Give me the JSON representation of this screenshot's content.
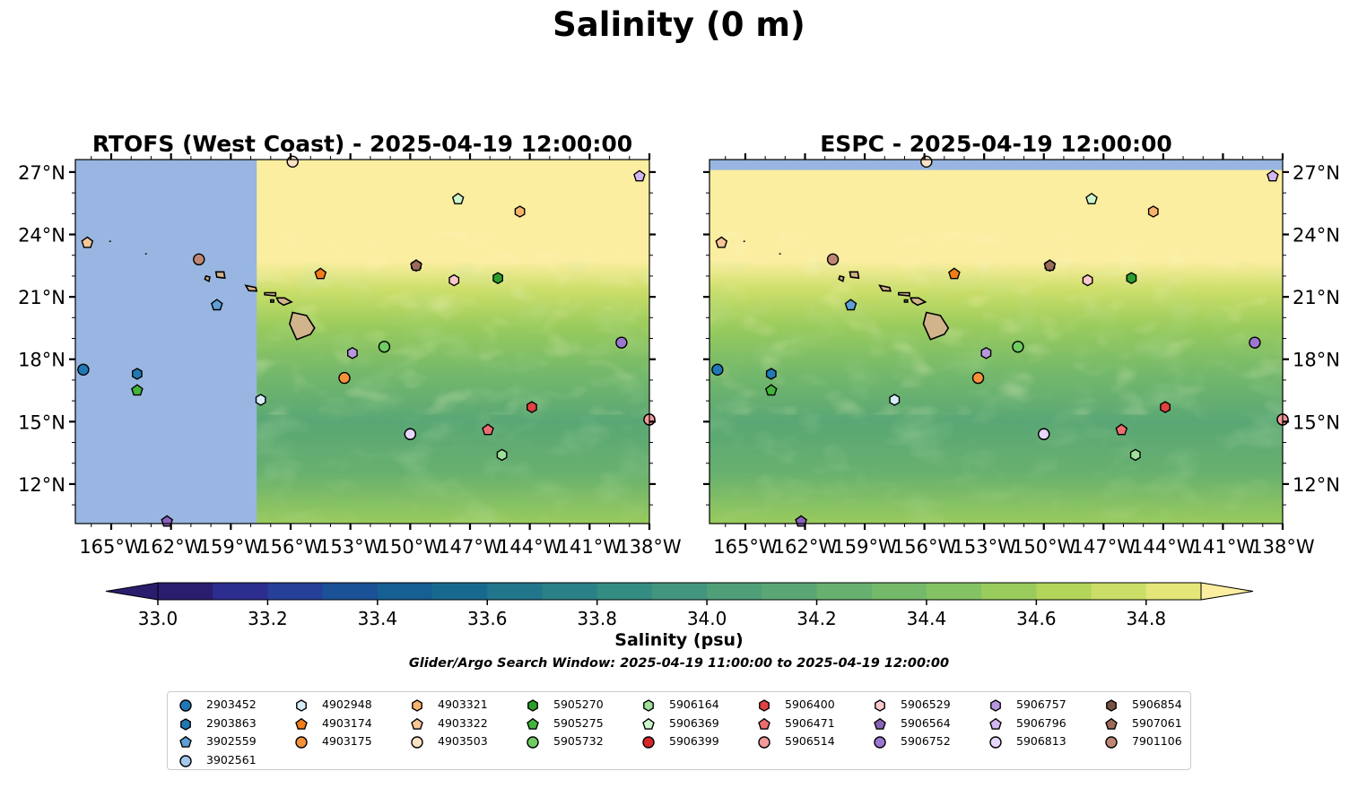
{
  "suptitle": "Salinity (0 m)",
  "panels": [
    {
      "title": "RTOFS (West Coast) - 2025-04-19 12:00:00",
      "ytick_side": "left"
    },
    {
      "title": "ESPC - 2025-04-19 12:00:00",
      "ytick_side": "right"
    }
  ],
  "colorbar": {
    "label": "Salinity (psu)",
    "ticks": [
      "33.0",
      "33.2",
      "33.4",
      "33.6",
      "33.8",
      "34.0",
      "34.2",
      "34.4",
      "34.6",
      "34.8"
    ],
    "levels_min": 33.0,
    "levels_max": 34.9,
    "level_step": 0.1,
    "extend": "both",
    "colors": [
      "#2a1d6e",
      "#2c2d8e",
      "#263f98",
      "#1b5196",
      "#155f92",
      "#176a8e",
      "#21768b",
      "#2b8187",
      "#358c83",
      "#43967e",
      "#4f9f79",
      "#5aa775",
      "#67b06f",
      "#75b96a",
      "#85c264",
      "#99cb5d",
      "#b2d55a",
      "#cbde68",
      "#e4e67a",
      "#fbeea0"
    ]
  },
  "window_text": "Glider/Argo Search Window: 2025-04-19 11:00:00 to 2025-04-19 12:00:00",
  "legend": [
    {
      "id": "2903452",
      "marker": "circle",
      "color": "#2178b4"
    },
    {
      "id": "2903863",
      "marker": "hexagon",
      "color": "#2178b4"
    },
    {
      "id": "3902559",
      "marker": "pentagon",
      "color": "#5d9fd6"
    },
    {
      "id": "3902561",
      "marker": "circle",
      "color": "#a3c8ec"
    },
    {
      "id": "4902948",
      "marker": "hexagon",
      "color": "#d6ecfa"
    },
    {
      "id": "4903174",
      "marker": "pentagon",
      "color": "#f07d17"
    },
    {
      "id": "4903175",
      "marker": "circle",
      "color": "#f7923a"
    },
    {
      "id": "4903321",
      "marker": "hexagon",
      "color": "#f8b46e"
    },
    {
      "id": "4903322",
      "marker": "pentagon",
      "color": "#f8c795"
    },
    {
      "id": "4903503",
      "marker": "circle",
      "color": "#fde2c5"
    },
    {
      "id": "5905270",
      "marker": "hexagon",
      "color": "#2b9e2c"
    },
    {
      "id": "5905275",
      "marker": "pentagon",
      "color": "#43b43a"
    },
    {
      "id": "5905732",
      "marker": "circle",
      "color": "#6fcc63"
    },
    {
      "id": "5906164",
      "marker": "hexagon",
      "color": "#9fe09a"
    },
    {
      "id": "5906369",
      "marker": "pentagon",
      "color": "#cef6cc"
    },
    {
      "id": "5906399",
      "marker": "circle",
      "color": "#d62627"
    },
    {
      "id": "5906400",
      "marker": "hexagon",
      "color": "#e24142"
    },
    {
      "id": "5906471",
      "marker": "pentagon",
      "color": "#ec6d6f"
    },
    {
      "id": "5906514",
      "marker": "circle",
      "color": "#f4999a"
    },
    {
      "id": "5906529",
      "marker": "hexagon",
      "color": "#fac9cc"
    },
    {
      "id": "5906564",
      "marker": "pentagon",
      "color": "#8a62ba"
    },
    {
      "id": "5906752",
      "marker": "circle",
      "color": "#9c77cf"
    },
    {
      "id": "5906757",
      "marker": "hexagon",
      "color": "#b897de"
    },
    {
      "id": "5906796",
      "marker": "pentagon",
      "color": "#d3b7f2"
    },
    {
      "id": "5906813",
      "marker": "circle",
      "color": "#e6d6fb"
    },
    {
      "id": "5906854",
      "marker": "hexagon",
      "color": "#7a5241"
    },
    {
      "id": "5907061",
      "marker": "pentagon",
      "color": "#9e6b5a"
    },
    {
      "id": "7901106",
      "marker": "circle",
      "color": "#c08674"
    }
  ],
  "map": {
    "xtick_labels": [
      "165°W",
      "162°W",
      "159°W",
      "156°W",
      "153°W",
      "150°W",
      "147°W",
      "144°W",
      "141°W",
      "138°W"
    ],
    "xtick_lon": [
      -165,
      -162,
      -159,
      -156,
      -153,
      -150,
      -147,
      -144,
      -141,
      -138
    ],
    "ytick_labels": [
      "12°N",
      "15°N",
      "18°N",
      "21°N",
      "24°N",
      "27°N"
    ],
    "ytick_lat": [
      12,
      15,
      18,
      21,
      24,
      27
    ],
    "lon_range": [
      -166.8,
      -138
    ],
    "lat_range": [
      10.1,
      27.6
    ],
    "land_color": "#d2b48c",
    "nodata_color": "#98b6e1",
    "rtofs_domain_west_lon": -157.7,
    "espc_nodata_north_lat": 27.1
  },
  "chart_data": {
    "type": "map-scatter",
    "title": "Salinity (0 m)",
    "variable": "Salinity (psu)",
    "observations": [
      {
        "id": "2903452",
        "lon": -166.4,
        "lat": 17.5
      },
      {
        "id": "2903863",
        "lon": -163.7,
        "lat": 17.3
      },
      {
        "id": "3902559",
        "lon": -159.7,
        "lat": 20.6
      },
      {
        "id": "3902561",
        "lon": -150.0,
        "lat": 14.4
      },
      {
        "id": "4902948",
        "lon": -157.5,
        "lat": 16.05
      },
      {
        "id": "4903174",
        "lon": -154.5,
        "lat": 22.1
      },
      {
        "id": "4903175",
        "lon": -153.3,
        "lat": 17.1
      },
      {
        "id": "4903321",
        "lon": -144.5,
        "lat": 25.1
      },
      {
        "id": "4903322",
        "lon": -166.2,
        "lat": 23.6
      },
      {
        "id": "4903503",
        "lon": -155.9,
        "lat": 27.5
      },
      {
        "id": "5905270",
        "lon": -145.6,
        "lat": 21.9
      },
      {
        "id": "5905275",
        "lon": -163.7,
        "lat": 16.5
      },
      {
        "id": "5905732",
        "lon": -151.3,
        "lat": 18.6
      },
      {
        "id": "5906164",
        "lon": -145.4,
        "lat": 13.4
      },
      {
        "id": "5906369",
        "lon": -147.6,
        "lat": 25.7
      },
      {
        "id": "5906399",
        "lon": -138.0,
        "lat": 15.1
      },
      {
        "id": "5906400",
        "lon": -143.9,
        "lat": 15.7
      },
      {
        "id": "5906471",
        "lon": -146.1,
        "lat": 14.6
      },
      {
        "id": "5906514",
        "lon": -138.0,
        "lat": 15.1
      },
      {
        "id": "5906529",
        "lon": -147.8,
        "lat": 21.8
      },
      {
        "id": "5906564",
        "lon": -162.2,
        "lat": 10.2
      },
      {
        "id": "5906752",
        "lon": -139.4,
        "lat": 18.8
      },
      {
        "id": "5906757",
        "lon": -152.9,
        "lat": 18.3
      },
      {
        "id": "5906796",
        "lon": -138.5,
        "lat": 26.8
      },
      {
        "id": "5906813",
        "lon": -150.0,
        "lat": 14.4
      },
      {
        "id": "5906854",
        "lon": -149.7,
        "lat": 22.5
      },
      {
        "id": "5907061",
        "lon": -149.7,
        "lat": 22.5
      },
      {
        "id": "7901106",
        "lon": -160.6,
        "lat": 22.8
      }
    ]
  }
}
